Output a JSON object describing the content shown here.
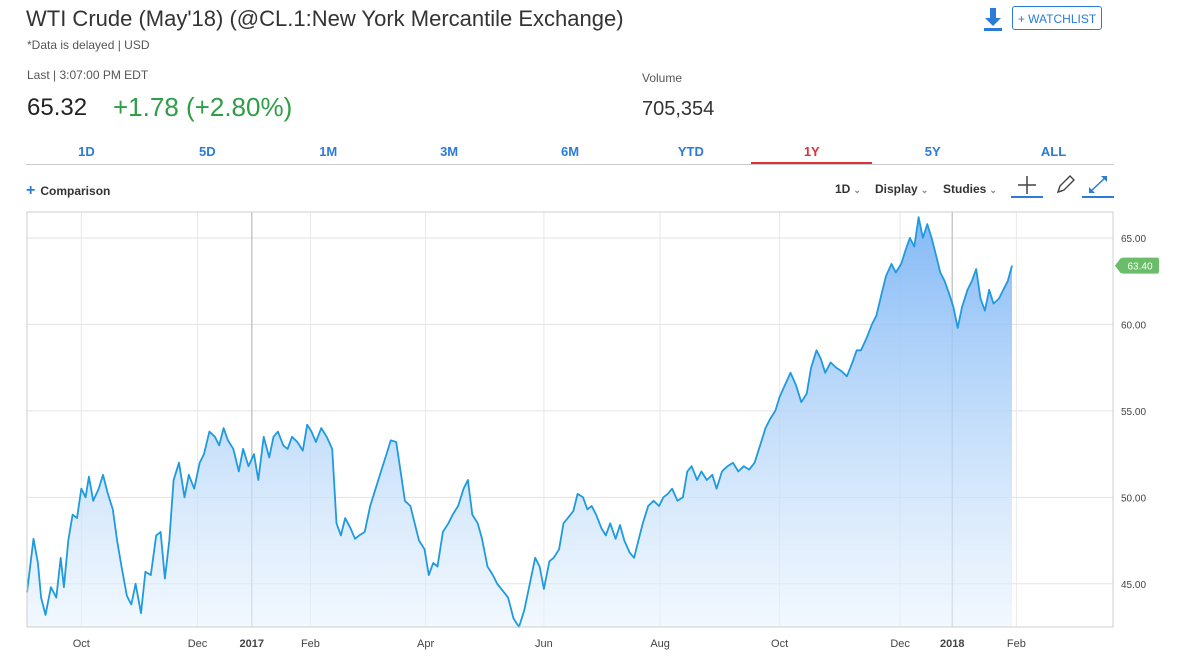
{
  "header": {
    "title": "WTI Crude (May'18) (@CL.1:New York Mercantile Exchange)",
    "subtitle": "*Data is delayed | USD",
    "last_label": "Last | 3:07:00 PM EDT",
    "last_price": "65.32",
    "change": "+1.78 (+2.80%)",
    "volume_label": "Volume",
    "volume": "705,354",
    "watchlist_label": "+ WATCHLIST",
    "download_icon": "download-icon"
  },
  "tabs": [
    {
      "label": "1D",
      "active": false
    },
    {
      "label": "5D",
      "active": false
    },
    {
      "label": "1M",
      "active": false
    },
    {
      "label": "3M",
      "active": false
    },
    {
      "label": "6M",
      "active": false
    },
    {
      "label": "YTD",
      "active": false
    },
    {
      "label": "1Y",
      "active": true
    },
    {
      "label": "5Y",
      "active": false
    },
    {
      "label": "ALL",
      "active": false
    }
  ],
  "toolbar": {
    "comparison_label": "Comparison",
    "interval_label": "1D",
    "display_label": "Display",
    "studies_label": "Studies",
    "icons": [
      "crosshair-icon",
      "pencil-icon",
      "expand-icon"
    ]
  },
  "colors": {
    "accent": "#2b7bd9",
    "up": "#2e9e47",
    "active_tab": "#d8323a",
    "line": "#1f9ae0",
    "badge": "#6bbd6a"
  },
  "chart_data": {
    "type": "area",
    "title": "",
    "xlabel": "",
    "ylabel": "",
    "ylim": [
      42.5,
      66.5
    ],
    "xlim": [
      0,
      1000
    ],
    "yticks": [
      45,
      50,
      55,
      60,
      65
    ],
    "ytick_labels": [
      "45.00",
      "50.00",
      "55.00",
      "60.00",
      "65.00"
    ],
    "xticks": [
      {
        "x": 50,
        "label": "Oct",
        "bold": false
      },
      {
        "x": 157,
        "label": "Dec",
        "bold": false
      },
      {
        "x": 207,
        "label": "2017",
        "bold": true
      },
      {
        "x": 261,
        "label": "Feb",
        "bold": false
      },
      {
        "x": 367,
        "label": "Apr",
        "bold": false
      },
      {
        "x": 476,
        "label": "Jun",
        "bold": false
      },
      {
        "x": 583,
        "label": "Aug",
        "bold": false
      },
      {
        "x": 693,
        "label": "Oct",
        "bold": false
      },
      {
        "x": 804,
        "label": "Dec",
        "bold": false
      },
      {
        "x": 852,
        "label": "2018",
        "bold": true
      },
      {
        "x": 911,
        "label": "Feb",
        "bold": false
      }
    ],
    "last_value_label": "63.40",
    "last_value": 63.4,
    "series": [
      {
        "name": "WTI Crude",
        "points": [
          [
            0,
            44.5
          ],
          [
            6,
            47.6
          ],
          [
            10,
            46.2
          ],
          [
            13,
            44.2
          ],
          [
            17,
            43.2
          ],
          [
            22,
            44.8
          ],
          [
            27,
            44.2
          ],
          [
            31,
            46.5
          ],
          [
            34,
            44.8
          ],
          [
            38,
            47.5
          ],
          [
            42,
            49.0
          ],
          [
            46,
            48.8
          ],
          [
            50,
            50.5
          ],
          [
            54,
            50.0
          ],
          [
            57,
            51.2
          ],
          [
            61,
            49.8
          ],
          [
            66,
            50.5
          ],
          [
            70,
            51.3
          ],
          [
            74,
            50.3
          ],
          [
            79,
            49.3
          ],
          [
            83,
            47.5
          ],
          [
            87,
            46.0
          ],
          [
            92,
            44.3
          ],
          [
            96,
            43.8
          ],
          [
            100,
            45.0
          ],
          [
            105,
            43.3
          ],
          [
            109,
            45.7
          ],
          [
            114,
            45.5
          ],
          [
            119,
            47.8
          ],
          [
            123,
            48.0
          ],
          [
            127,
            45.3
          ],
          [
            131,
            47.5
          ],
          [
            135,
            51.0
          ],
          [
            140,
            52.0
          ],
          [
            145,
            50.0
          ],
          [
            149,
            51.3
          ],
          [
            154,
            50.5
          ],
          [
            159,
            52.0
          ],
          [
            163,
            52.5
          ],
          [
            168,
            53.8
          ],
          [
            173,
            53.5
          ],
          [
            177,
            53.0
          ],
          [
            181,
            54.0
          ],
          [
            185,
            53.3
          ],
          [
            190,
            52.8
          ],
          [
            195,
            51.5
          ],
          [
            199,
            52.8
          ],
          [
            204,
            51.8
          ],
          [
            209,
            52.5
          ],
          [
            213,
            51.0
          ],
          [
            218,
            53.5
          ],
          [
            223,
            52.3
          ],
          [
            227,
            53.5
          ],
          [
            231,
            53.8
          ],
          [
            236,
            53.0
          ],
          [
            240,
            52.8
          ],
          [
            244,
            53.5
          ],
          [
            249,
            53.2
          ],
          [
            254,
            52.7
          ],
          [
            258,
            54.2
          ],
          [
            262,
            53.8
          ],
          [
            266,
            53.2
          ],
          [
            271,
            54.0
          ],
          [
            276,
            53.5
          ],
          [
            281,
            52.8
          ],
          [
            285,
            48.5
          ],
          [
            289,
            47.8
          ],
          [
            293,
            48.8
          ],
          [
            298,
            48.2
          ],
          [
            302,
            47.6
          ],
          [
            306,
            47.8
          ],
          [
            311,
            48.0
          ],
          [
            316,
            49.5
          ],
          [
            321,
            50.5
          ],
          [
            326,
            51.5
          ],
          [
            331,
            52.5
          ],
          [
            335,
            53.3
          ],
          [
            340,
            53.2
          ],
          [
            344,
            51.5
          ],
          [
            348,
            49.8
          ],
          [
            353,
            49.5
          ],
          [
            357,
            48.5
          ],
          [
            361,
            47.5
          ],
          [
            366,
            47.0
          ],
          [
            370,
            45.5
          ],
          [
            374,
            46.2
          ],
          [
            378,
            46.0
          ],
          [
            383,
            48.0
          ],
          [
            388,
            48.5
          ],
          [
            392,
            49.0
          ],
          [
            397,
            49.5
          ],
          [
            402,
            50.5
          ],
          [
            406,
            51.0
          ],
          [
            410,
            49.0
          ],
          [
            415,
            48.5
          ],
          [
            419,
            47.6
          ],
          [
            424,
            46.0
          ],
          [
            429,
            45.5
          ],
          [
            433,
            45.0
          ],
          [
            438,
            44.6
          ],
          [
            443,
            44.2
          ],
          [
            448,
            43.0
          ],
          [
            453,
            42.5
          ],
          [
            458,
            43.5
          ],
          [
            463,
            45.0
          ],
          [
            468,
            46.5
          ],
          [
            472,
            46.0
          ],
          [
            476,
            44.7
          ],
          [
            481,
            46.3
          ],
          [
            485,
            46.5
          ],
          [
            490,
            47.0
          ],
          [
            494,
            48.5
          ],
          [
            498,
            48.8
          ],
          [
            503,
            49.2
          ],
          [
            507,
            50.2
          ],
          [
            512,
            50.0
          ],
          [
            516,
            49.3
          ],
          [
            520,
            49.5
          ],
          [
            524,
            49.0
          ],
          [
            529,
            48.2
          ],
          [
            533,
            47.8
          ],
          [
            537,
            48.5
          ],
          [
            542,
            47.6
          ],
          [
            546,
            48.4
          ],
          [
            550,
            47.5
          ],
          [
            555,
            46.8
          ],
          [
            559,
            46.5
          ],
          [
            563,
            47.5
          ],
          [
            567,
            48.5
          ],
          [
            572,
            49.5
          ],
          [
            577,
            49.8
          ],
          [
            582,
            49.5
          ],
          [
            586,
            50.0
          ],
          [
            590,
            50.2
          ],
          [
            594,
            50.5
          ],
          [
            599,
            49.8
          ],
          [
            604,
            50.0
          ],
          [
            608,
            51.5
          ],
          [
            612,
            51.8
          ],
          [
            617,
            51.0
          ],
          [
            621,
            51.5
          ],
          [
            626,
            51.0
          ],
          [
            631,
            51.3
          ],
          [
            635,
            50.5
          ],
          [
            640,
            51.5
          ],
          [
            645,
            51.8
          ],
          [
            650,
            52.0
          ],
          [
            655,
            51.5
          ],
          [
            660,
            51.8
          ],
          [
            665,
            51.6
          ],
          [
            670,
            52.0
          ],
          [
            675,
            53.0
          ],
          [
            680,
            54.0
          ],
          [
            684,
            54.5
          ],
          [
            689,
            55.0
          ],
          [
            693,
            55.8
          ],
          [
            698,
            56.5
          ],
          [
            703,
            57.2
          ],
          [
            708,
            56.5
          ],
          [
            713,
            55.5
          ],
          [
            718,
            56.0
          ],
          [
            722,
            57.5
          ],
          [
            727,
            58.5
          ],
          [
            731,
            58.0
          ],
          [
            735,
            57.2
          ],
          [
            740,
            57.8
          ],
          [
            745,
            57.5
          ],
          [
            750,
            57.3
          ],
          [
            755,
            57.0
          ],
          [
            760,
            57.8
          ],
          [
            764,
            58.5
          ],
          [
            768,
            58.5
          ],
          [
            773,
            59.2
          ],
          [
            778,
            60.0
          ],
          [
            782,
            60.5
          ],
          [
            787,
            61.8
          ],
          [
            791,
            62.8
          ],
          [
            796,
            63.5
          ],
          [
            800,
            63.0
          ],
          [
            805,
            63.5
          ],
          [
            809,
            64.3
          ],
          [
            813,
            65.0
          ],
          [
            817,
            64.5
          ],
          [
            821,
            66.2
          ],
          [
            825,
            65.0
          ],
          [
            829,
            65.8
          ],
          [
            833,
            65.0
          ],
          [
            837,
            64.0
          ],
          [
            841,
            63.0
          ],
          [
            845,
            62.5
          ],
          [
            849,
            61.8
          ],
          [
            853,
            61.0
          ],
          [
            857,
            59.8
          ],
          [
            861,
            61.0
          ],
          [
            866,
            62.0
          ],
          [
            870,
            62.5
          ],
          [
            874,
            63.2
          ],
          [
            878,
            61.5
          ],
          [
            882,
            60.8
          ],
          [
            886,
            62.0
          ],
          [
            890,
            61.2
          ],
          [
            895,
            61.5
          ],
          [
            899,
            62.0
          ],
          [
            903,
            62.5
          ],
          [
            907,
            63.4
          ]
        ]
      }
    ]
  }
}
